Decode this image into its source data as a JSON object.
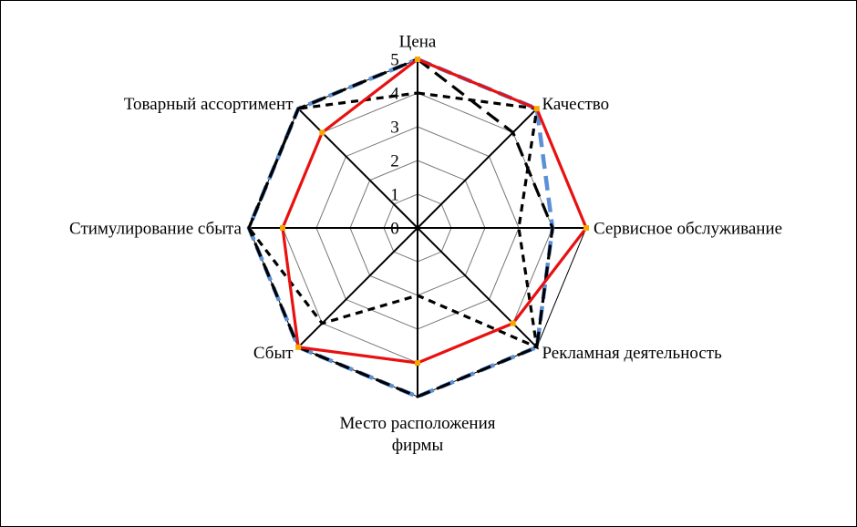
{
  "chart_data": {
    "type": "radar",
    "categories": [
      "Цена",
      "Качество",
      "Сервисное обслуживание",
      "Рекламная деятельность",
      "Место расположения фирмы",
      "Сбыт",
      "Стимулирование сбыта",
      "Товарный ассортимент"
    ],
    "ylim": [
      0,
      5
    ],
    "yticks": [
      0,
      1,
      2,
      3,
      4,
      5
    ],
    "grid": true,
    "series": [
      {
        "color": "#5b8fd6",
        "dash": "long",
        "values": [
          5,
          5,
          4,
          5,
          5,
          5,
          5,
          5
        ]
      },
      {
        "color": "#000000",
        "dash": "long",
        "values": [
          5,
          4,
          4,
          5,
          5,
          5,
          5,
          5
        ]
      },
      {
        "color": "#000000",
        "dash": "short",
        "values": [
          4,
          5,
          3,
          5,
          2,
          4,
          5,
          5
        ]
      },
      {
        "color": "#e81010",
        "dash": "solid",
        "marker_color": "#f5a800",
        "values": [
          5,
          5,
          5,
          4,
          4,
          5,
          4,
          4
        ]
      }
    ]
  }
}
